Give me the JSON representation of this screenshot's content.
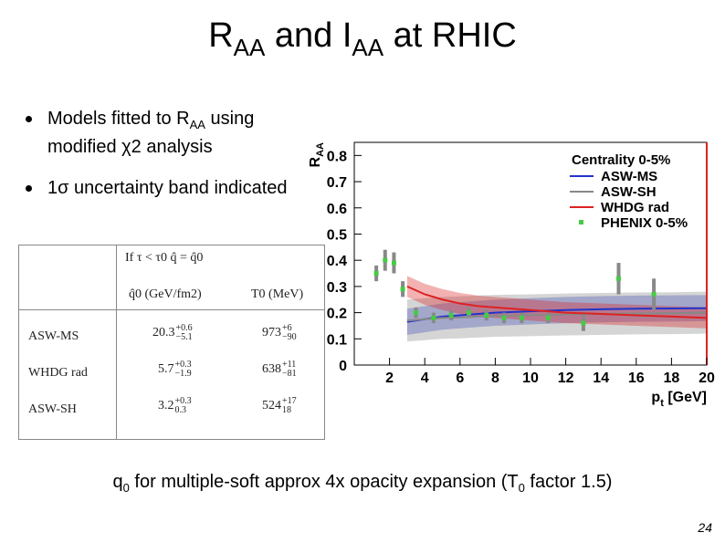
{
  "slide": {
    "title_r": "R",
    "title_r_sub": "AA",
    "title_mid": " and I",
    "title_i_sub": "AA",
    "title_end": " at RHIC",
    "page_number": "24"
  },
  "bullets": [
    {
      "pre": "Models fitted to R",
      "sub": "AA",
      "post": " using modified χ2 analysis"
    },
    {
      "pre": "1σ uncertainty band indicated",
      "sub": "",
      "post": ""
    }
  ],
  "table": {
    "condition": "If τ < τ0 q̂ = q̂0",
    "col1_header": "q̂0 (GeV/fm2)",
    "col2_header": "T0 (MeV)",
    "rows": [
      {
        "model": "ASW-MS",
        "q0": "20.3",
        "q0_plus": "+0.6",
        "q0_minus": "−5.1",
        "t0": "973",
        "t0_plus": "+6",
        "t0_minus": "−90"
      },
      {
        "model": "WHDG rad",
        "q0": "5.7",
        "q0_plus": "+0.3",
        "q0_minus": "−1.9",
        "t0": "638",
        "t0_plus": "+11",
        "t0_minus": "−81"
      },
      {
        "model": "ASW-SH",
        "q0": "3.2",
        "q0_plus": "+0.3",
        "q0_minus": "0.3",
        "t0": "524",
        "t0_plus": "+17",
        "t0_minus": "18"
      }
    ]
  },
  "caption": {
    "pre": "q",
    "sub0": "0",
    "mid": " for multiple-soft approx 4x opacity expansion (T",
    "sub1": "0",
    "post": " factor 1.5)"
  },
  "chart_data": {
    "type": "line",
    "xlabel": "p",
    "xlabel_sub": "t",
    "xlabel_unit": " [GeV]",
    "ylabel": "R",
    "ylabel_sub": "AA",
    "xlim": [
      0,
      20
    ],
    "ylim": [
      0,
      0.85
    ],
    "x_ticks": [
      2,
      4,
      6,
      8,
      10,
      12,
      14,
      16,
      18,
      20
    ],
    "y_ticks": [
      0,
      0.1,
      0.2,
      0.3,
      0.4,
      0.5,
      0.6,
      0.7,
      0.8
    ],
    "legend_title": "Centrality 0-5%",
    "legend_position": "top-right",
    "colors": {
      "asw_ms": "#2233cc",
      "asw_sh": "#888888",
      "whdg": "#dd2222",
      "phenix": "#44cc44",
      "frame": "#dd2222"
    },
    "series": [
      {
        "name": "ASW-MS",
        "key": "asw_ms",
        "x": [
          3,
          4,
          5,
          6,
          7,
          8,
          10,
          12,
          14,
          16,
          18,
          20
        ],
        "y": [
          0.165,
          0.175,
          0.185,
          0.19,
          0.195,
          0.2,
          0.205,
          0.21,
          0.213,
          0.215,
          0.216,
          0.217
        ],
        "band": 0.05
      },
      {
        "name": "ASW-SH",
        "key": "asw_sh",
        "x": [
          3,
          4,
          5,
          6,
          7,
          8,
          10,
          12,
          14,
          16,
          18,
          20
        ],
        "y": [
          0.17,
          0.175,
          0.18,
          0.182,
          0.185,
          0.188,
          0.19,
          0.193,
          0.195,
          0.197,
          0.198,
          0.2
        ],
        "band": 0.08
      },
      {
        "name": "WHDG rad",
        "key": "whdg",
        "x": [
          3,
          4,
          5,
          6,
          7,
          8,
          10,
          12,
          14,
          16,
          18,
          20
        ],
        "y": [
          0.3,
          0.27,
          0.25,
          0.235,
          0.225,
          0.22,
          0.21,
          0.2,
          0.195,
          0.19,
          0.185,
          0.18
        ],
        "band": 0.04
      },
      {
        "name": "PHENIX 0-5%",
        "key": "phenix",
        "type": "points",
        "x": [
          1.25,
          1.75,
          2.25,
          2.75,
          3.5,
          4.5,
          5.5,
          6.5,
          7.5,
          8.5,
          9.5,
          11,
          13,
          15,
          17
        ],
        "y": [
          0.35,
          0.4,
          0.39,
          0.29,
          0.2,
          0.18,
          0.19,
          0.2,
          0.19,
          0.18,
          0.18,
          0.18,
          0.16,
          0.33,
          0.27
        ],
        "err": [
          0.03,
          0.04,
          0.04,
          0.03,
          0.02,
          0.02,
          0.02,
          0.02,
          0.02,
          0.02,
          0.02,
          0.02,
          0.03,
          0.06,
          0.06
        ]
      }
    ]
  }
}
